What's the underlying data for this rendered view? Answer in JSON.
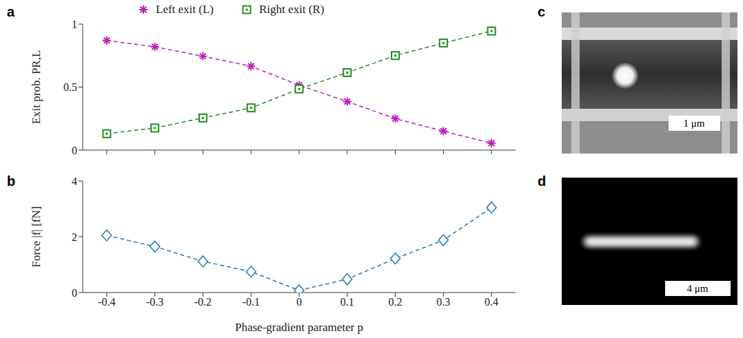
{
  "chart_data": [
    {
      "panel": "a",
      "type": "line",
      "x": [
        -0.4,
        -0.3,
        -0.2,
        -0.1,
        0,
        0.1,
        0.2,
        0.3,
        0.4
      ],
      "xlim": [
        -0.45,
        0.45
      ],
      "xticks": [
        -0.4,
        -0.3,
        -0.2,
        -0.1,
        0,
        0.1,
        0.2,
        0.3,
        0.4
      ],
      "ylim": [
        0,
        1
      ],
      "yticks": [
        0,
        0.5,
        1
      ],
      "y_label": "Exit prob. PR,L",
      "tick_labels": "y",
      "legend": "top",
      "line_style": "dashed",
      "series": [
        {
          "name": "Left exit (L)",
          "color": "#bf1fbf",
          "marker": "star",
          "values": [
            0.87,
            0.82,
            0.745,
            0.665,
            0.515,
            0.385,
            0.25,
            0.15,
            0.055
          ]
        },
        {
          "name": "Right exit (R)",
          "color": "#228b22",
          "marker": "square",
          "values": [
            0.13,
            0.175,
            0.255,
            0.335,
            0.485,
            0.615,
            0.75,
            0.85,
            0.945
          ]
        }
      ]
    },
    {
      "panel": "b",
      "type": "line",
      "x": [
        -0.4,
        -0.3,
        -0.2,
        -0.1,
        0,
        0.1,
        0.2,
        0.3,
        0.4
      ],
      "xlim": [
        -0.45,
        0.45
      ],
      "xticks": [
        -0.4,
        -0.3,
        -0.2,
        -0.1,
        0,
        0.1,
        0.2,
        0.3,
        0.4
      ],
      "ylim": [
        0,
        4
      ],
      "yticks": [
        0,
        2,
        4
      ],
      "x_label": "Phase-gradient parameter p",
      "y_label": "Force |f| [fN]",
      "line_style": "dashed",
      "series": [
        {
          "color": "#1f7ac0",
          "marker": "diamond",
          "values": [
            2.05,
            1.65,
            1.12,
            0.75,
            0.08,
            0.48,
            1.22,
            1.88,
            3.05
          ]
        }
      ]
    }
  ],
  "images": [
    {
      "panel": "c",
      "scale_bar": "1 μm"
    },
    {
      "panel": "d",
      "scale_bar": "4 μm"
    }
  ]
}
